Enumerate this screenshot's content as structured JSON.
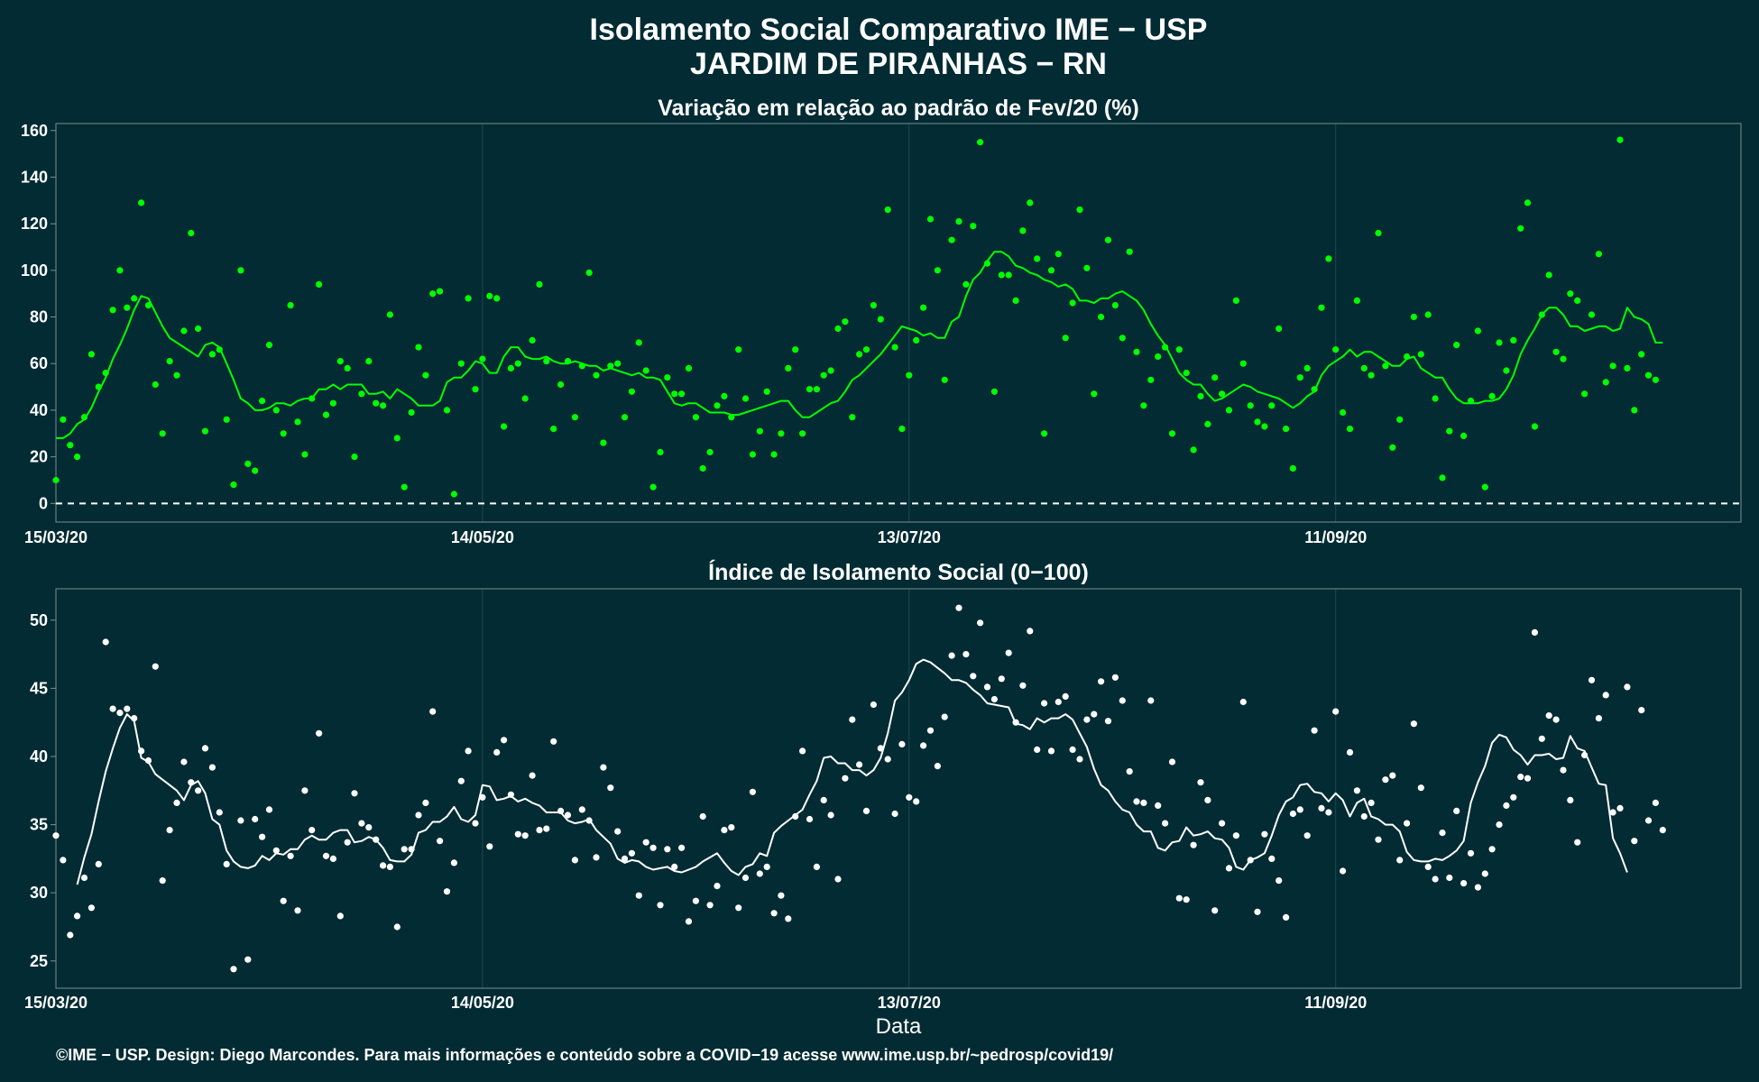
{
  "title_line1": "Isolamento Social Comparativo IME − USP",
  "title_line2": "JARDIM DE PIRANHAS − RN",
  "xlabel": "Data",
  "caption": "©IME − USP. Design: Diego Marcondes. Para mais informações e conteúdo sobre a COVID−19 acesse www.ime.usp.br/~pedrosp/covid19/",
  "colors": {
    "background": "#022B33",
    "panel_border": "#7A8F92",
    "grid": "#1D4A52",
    "top_series": "#00FF00",
    "bottom_series": "#FFFFFF",
    "reference_line": "#FFFFFF"
  },
  "chart_data": [
    {
      "type": "scatter",
      "title": "Variação em relação ao padrão de Fev/20 (%)",
      "x_start": "15/03/20",
      "x_end": "07/11/20",
      "xticks": [
        "15/03/20",
        "14/05/20",
        "13/07/20",
        "11/09/20"
      ],
      "ylim": [
        -8,
        163
      ],
      "yticks": [
        0,
        20,
        40,
        60,
        80,
        100,
        120,
        140,
        160
      ],
      "reference_line_y": 0,
      "series": [
        {
          "style": "points",
          "values": [
            10,
            36,
            25,
            20,
            37,
            64,
            50,
            56,
            83,
            100,
            84,
            88,
            129,
            85,
            51,
            30,
            61,
            55,
            74,
            116,
            75,
            31,
            64,
            66,
            36,
            8,
            100,
            17,
            14,
            44,
            68,
            40,
            30,
            85,
            35,
            21,
            45,
            94,
            38,
            43,
            61,
            58,
            20,
            47,
            61,
            43,
            42,
            81,
            28,
            7,
            39,
            67,
            55,
            90,
            91,
            40,
            4,
            60,
            88,
            49,
            62,
            89,
            88,
            33,
            58,
            60,
            45,
            70,
            94,
            61,
            32,
            51,
            61,
            37,
            59,
            99,
            55,
            26,
            59,
            60,
            37,
            48,
            69,
            57,
            7,
            22,
            54,
            47,
            47,
            58,
            37,
            15,
            22,
            42,
            46,
            37,
            66,
            45,
            21,
            31,
            48,
            21,
            30,
            58,
            66,
            30,
            49,
            49,
            55,
            57,
            75,
            78,
            37,
            64,
            66,
            85,
            79,
            126,
            67,
            32,
            55,
            70,
            84,
            122,
            100,
            53,
            113,
            121,
            94,
            119,
            155,
            103,
            48,
            98,
            98,
            87,
            117,
            129,
            105,
            30,
            100,
            107,
            71,
            86,
            126,
            101,
            47,
            80,
            113,
            85,
            71,
            108,
            65,
            42,
            53,
            63,
            67,
            30,
            66,
            56,
            23,
            46,
            34,
            54,
            47,
            40,
            87,
            60,
            42,
            35,
            33,
            42,
            75,
            32,
            15,
            54,
            58,
            49,
            84,
            105,
            66,
            39,
            32,
            87,
            58,
            55,
            116,
            59,
            24,
            36,
            63,
            80,
            64,
            81,
            45,
            11,
            31,
            68,
            29,
            44,
            74,
            7,
            46,
            69,
            57,
            70,
            118,
            129,
            33,
            81,
            98,
            65,
            62,
            90,
            87,
            47,
            81,
            107,
            52,
            59,
            156,
            58,
            40,
            64,
            55,
            53
          ]
        },
        {
          "style": "line",
          "values": [
            28,
            28,
            30,
            34,
            36,
            41,
            48,
            54,
            62,
            68,
            75,
            83,
            89,
            88,
            82,
            76,
            71,
            69,
            67,
            65,
            63,
            68,
            69,
            67,
            60,
            53,
            45,
            43,
            40,
            40,
            41,
            43,
            43,
            42,
            44,
            45,
            45,
            49,
            49,
            51,
            49,
            51,
            51,
            51,
            47,
            47,
            48,
            45,
            49,
            47,
            45,
            42,
            42,
            42,
            44,
            52,
            54,
            54,
            57,
            61,
            60,
            56,
            56,
            63,
            67,
            67,
            63,
            62,
            62,
            63,
            61,
            60,
            60,
            61,
            60,
            59,
            59,
            57,
            58,
            57,
            56,
            55,
            56,
            54,
            54,
            53,
            48,
            43,
            42,
            43,
            43,
            41,
            39,
            39,
            39,
            38,
            38,
            39,
            40,
            41,
            42,
            43,
            44,
            44,
            40,
            37,
            37,
            39,
            41,
            43,
            44,
            48,
            53,
            55,
            58,
            61,
            64,
            68,
            72,
            76,
            75,
            74,
            72,
            73,
            71,
            71,
            78,
            80,
            89,
            96,
            99,
            104,
            108,
            108,
            106,
            102,
            101,
            99,
            98,
            96,
            95,
            93,
            94,
            92,
            87,
            87,
            86,
            88,
            88,
            90,
            91,
            89,
            87,
            83,
            77,
            72,
            68,
            62,
            56,
            53,
            51,
            51,
            47,
            44,
            45,
            47,
            49,
            51,
            50,
            48,
            47,
            46,
            45,
            43,
            41,
            43,
            46,
            48,
            55,
            59,
            61,
            63,
            66,
            63,
            65,
            65,
            63,
            61,
            59,
            59,
            62,
            63,
            58,
            56,
            54,
            54,
            49,
            45,
            43,
            43,
            43,
            44,
            44,
            45,
            49,
            55,
            64,
            70,
            75,
            81,
            84,
            84,
            81,
            76,
            76,
            74,
            75,
            76,
            76,
            74,
            75,
            84,
            80,
            79,
            77,
            69,
            69
          ]
        }
      ]
    },
    {
      "type": "scatter",
      "title": "Índice de Isolamento Social (0−100)",
      "x_start": "15/03/20",
      "x_end": "07/11/20",
      "xticks": [
        "15/03/20",
        "14/05/20",
        "13/07/20",
        "11/09/20"
      ],
      "ylim": [
        23,
        52.3
      ],
      "yticks": [
        25,
        30,
        35,
        40,
        45,
        50
      ],
      "series": [
        {
          "style": "points",
          "values": [
            34.2,
            32.4,
            26.9,
            28.3,
            31.1,
            28.9,
            32.1,
            48.4,
            43.5,
            43.2,
            43.5,
            42.8,
            40.4,
            39.7,
            46.6,
            30.9,
            34.6,
            36.6,
            39.6,
            38.1,
            37.5,
            40.6,
            39.2,
            35.9,
            32.1,
            24.4,
            35.3,
            25.1,
            35.4,
            34.1,
            36.1,
            33.1,
            29.4,
            32.7,
            28.7,
            37.5,
            34.6,
            41.7,
            32.7,
            32.5,
            28.3,
            33.7,
            37.3,
            35.1,
            34.8,
            33.9,
            32.0,
            31.9,
            27.5,
            33.2,
            33.2,
            35.7,
            36.6,
            43.3,
            33.8,
            30.1,
            32.2,
            38.2,
            40.4,
            35.1,
            37.0,
            33.4,
            40.3,
            41.2,
            37.2,
            34.3,
            34.2,
            38.6,
            34.6,
            34.7,
            41.1,
            36.0,
            35.7,
            32.4,
            36.1,
            35.3,
            32.6,
            39.2,
            37.7,
            34.5,
            32.5,
            32.9,
            29.8,
            33.7,
            33.3,
            29.1,
            33.2,
            31.9,
            33.3,
            27.9,
            29.4,
            35.6,
            29.1,
            30.5,
            34.6,
            34.8,
            28.9,
            31.1,
            37.4,
            31.4,
            31.9,
            28.5,
            29.8,
            28.1,
            35.6,
            40.4,
            35.4,
            31.9,
            36.8,
            35.7,
            31.0,
            38.4,
            42.7,
            39.4,
            36.0,
            43.8,
            40.6,
            39.8,
            35.8,
            40.9,
            37.0,
            36.7,
            40.8,
            41.9,
            39.3,
            42.9,
            47.4,
            50.9,
            47.5,
            45.9,
            49.8,
            45.1,
            44.2,
            45.7,
            47.6,
            42.5,
            45.2,
            49.2,
            40.5,
            43.9,
            40.4,
            44.0,
            44.4,
            40.5,
            39.8,
            42.7,
            43.1,
            45.5,
            42.6,
            45.8,
            44.1,
            38.9,
            36.7,
            36.6,
            44.1,
            36.4,
            35.1,
            39.6,
            29.6,
            29.5,
            33.5,
            38.1,
            36.8,
            28.7,
            35.1,
            31.8,
            34.2,
            44.0,
            32.4,
            28.6,
            34.3,
            32.5,
            30.9,
            28.2,
            35.8,
            36.1,
            34.2,
            41.9,
            36.2,
            35.9,
            43.3,
            31.6,
            40.3,
            37.5,
            35.6,
            36.6,
            33.9,
            38.3,
            38.6,
            32.4,
            35.1,
            42.4,
            37.7,
            31.9,
            31.0,
            34.4,
            31.1,
            36.0,
            30.7,
            32.9,
            30.4,
            31.4,
            33.2,
            35.0,
            36.4,
            37.0,
            38.5,
            38.4,
            49.1,
            41.3,
            43.0,
            42.7,
            39.0,
            36.8,
            33.7,
            40.1,
            45.6,
            42.8,
            44.5,
            35.9,
            36.2,
            45.1,
            33.8,
            43.4,
            35.3,
            36.6,
            34.6
          ]
        },
        {
          "style": "line",
          "start_index": 3,
          "values": [
            30.6,
            32.6,
            34.3,
            36.7,
            38.9,
            40.6,
            42.1,
            43.1,
            42.6,
            39.9,
            39.6,
            38.7,
            38.3,
            37.9,
            37.5,
            36.8,
            37.9,
            38.2,
            37.3,
            35.4,
            35.0,
            33.1,
            32.3,
            31.9,
            31.8,
            32.0,
            32.7,
            32.4,
            32.9,
            32.8,
            33.2,
            33.2,
            33.9,
            34.2,
            33.9,
            33.9,
            34.4,
            34.6,
            34.6,
            33.7,
            33.8,
            34.1,
            33.9,
            33.3,
            32.4,
            32.3,
            32.3,
            32.8,
            34.4,
            34.6,
            35.2,
            35.2,
            35.6,
            36.3,
            35.4,
            35.2,
            35.7,
            37.9,
            37.8,
            36.8,
            36.9,
            37.1,
            36.7,
            36.9,
            36.6,
            36.4,
            35.9,
            35.9,
            35.9,
            35.3,
            35.1,
            35.2,
            35.4,
            34.6,
            34.1,
            33.6,
            32.5,
            32.2,
            32.4,
            32.3,
            31.9,
            31.7,
            31.8,
            31.9,
            31.6,
            31.5,
            31.7,
            31.9,
            32.3,
            32.6,
            32.9,
            32.2,
            31.6,
            31.3,
            31.9,
            32.1,
            32.9,
            32.7,
            34.4,
            34.9,
            35.3,
            35.7,
            36.1,
            37.2,
            38.2,
            39.9,
            40.0,
            39.5,
            39.5,
            39.0,
            39.0,
            38.6,
            39.0,
            39.9,
            41.7,
            44.1,
            44.7,
            45.6,
            46.8,
            47.1,
            46.9,
            46.5,
            46.1,
            45.6,
            45.6,
            45.4,
            44.9,
            44.5,
            43.9,
            43.8,
            43.7,
            43.6,
            42.4,
            42.3,
            42.0,
            42.8,
            42.5,
            42.8,
            42.8,
            43.1,
            42.7,
            41.7,
            40.7,
            39.1,
            37.9,
            37.5,
            36.7,
            36.1,
            35.9,
            35.0,
            34.5,
            34.5,
            33.3,
            33.1,
            33.7,
            33.8,
            34.8,
            34.2,
            34.3,
            34.5,
            34.0,
            33.9,
            33.3,
            31.9,
            31.7,
            32.4,
            32.6,
            32.9,
            34.2,
            35.7,
            36.7,
            37.0,
            37.9,
            38.0,
            37.4,
            37.3,
            36.7,
            37.3,
            36.8,
            35.6,
            36.6,
            36.9,
            35.6,
            35.4,
            35.0,
            35.0,
            34.5,
            33.0,
            32.4,
            32.3,
            32.3,
            32.5,
            32.4,
            32.7,
            33.1,
            33.8,
            36.6,
            38.1,
            39.3,
            41.0,
            41.6,
            41.4,
            40.5,
            40.1,
            39.4,
            40.1,
            40.1,
            40.2,
            39.8,
            39.9,
            41.5,
            40.6,
            40.4,
            39.2,
            38.0,
            37.9,
            34.0,
            32.9,
            31.5
          ]
        }
      ]
    }
  ]
}
